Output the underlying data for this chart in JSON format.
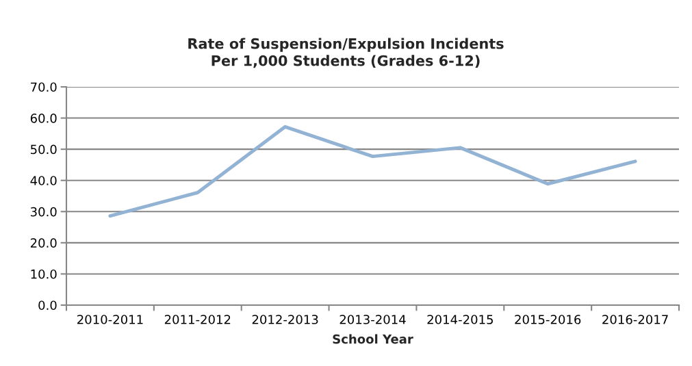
{
  "chart_data": {
    "type": "line",
    "title": "Rate of Suspension/Expulsion Incidents\nPer 1,000 Students (Grades 6-12)",
    "xlabel": "School Year",
    "categories": [
      "2010-2011",
      "2011-2012",
      "2012-2013",
      "2013-2014",
      "2014-2015",
      "2015-2016",
      "2016-2017"
    ],
    "series": [
      {
        "color": "#93b3d4",
        "values": [
          28.6,
          36.1,
          57.2,
          47.7,
          50.5,
          38.9,
          46.1
        ]
      }
    ],
    "ylim": [
      0,
      70
    ],
    "yticks": [
      {
        "value": 0,
        "label": "0.0"
      },
      {
        "value": 10,
        "label": "10.0"
      },
      {
        "value": 20,
        "label": "20.0"
      },
      {
        "value": 30,
        "label": "30.0"
      },
      {
        "value": 40,
        "label": "40.0"
      },
      {
        "value": 50,
        "label": "50.0"
      },
      {
        "value": 60,
        "label": "60.0"
      },
      {
        "value": 70,
        "label": "70.0"
      }
    ],
    "grid": "y",
    "marker": "none",
    "line_style": "solid"
  }
}
